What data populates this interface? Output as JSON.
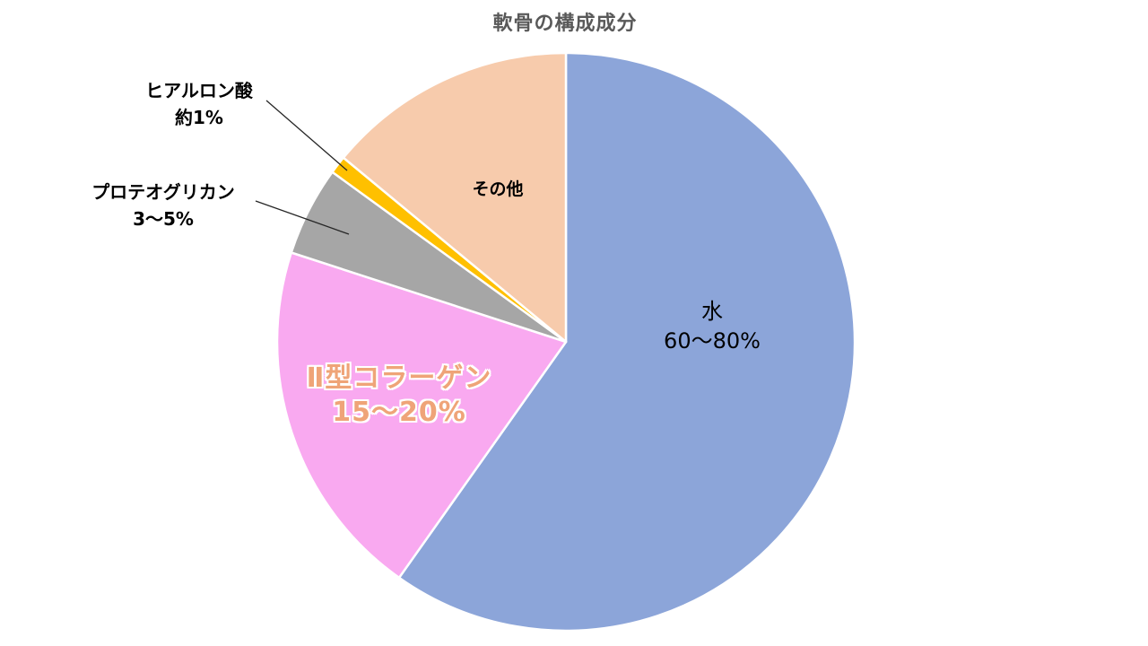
{
  "chart_data": {
    "type": "pie",
    "title": "軟骨の構成成分",
    "title_color": "#595959",
    "legend": "none",
    "background": "#ffffff",
    "slice_border_color": "#ffffff",
    "leader_line_color": "#262626",
    "segments": [
      {
        "name": "water",
        "label": "水",
        "value_label": "60〜80%",
        "pct": 59.8,
        "color": "#8CA5D9",
        "label_placement": "inside"
      },
      {
        "name": "type2-collagen",
        "label": "Ⅱ型コラーゲン",
        "value_label": "15〜20%",
        "pct": 20.2,
        "color": "#F9A9F0",
        "label_placement": "inside",
        "label_color": "#EFA478",
        "label_outline": "#FFFFFF"
      },
      {
        "name": "proteoglycan",
        "label": "プロテオグリカン",
        "value_label": "3〜5%",
        "pct": 5.0,
        "color": "#A6A6A6",
        "label_placement": "outside-with-leader-line"
      },
      {
        "name": "hyaluronic-acid",
        "label": "ヒアルロン酸",
        "value_label": "約1%",
        "pct": 1.0,
        "color": "#FFC000",
        "label_placement": "outside-with-leader-line"
      },
      {
        "name": "others",
        "label": "その他",
        "value_label": "",
        "pct": 14.0,
        "color": "#F7CBAC",
        "label_placement": "inside"
      }
    ]
  }
}
